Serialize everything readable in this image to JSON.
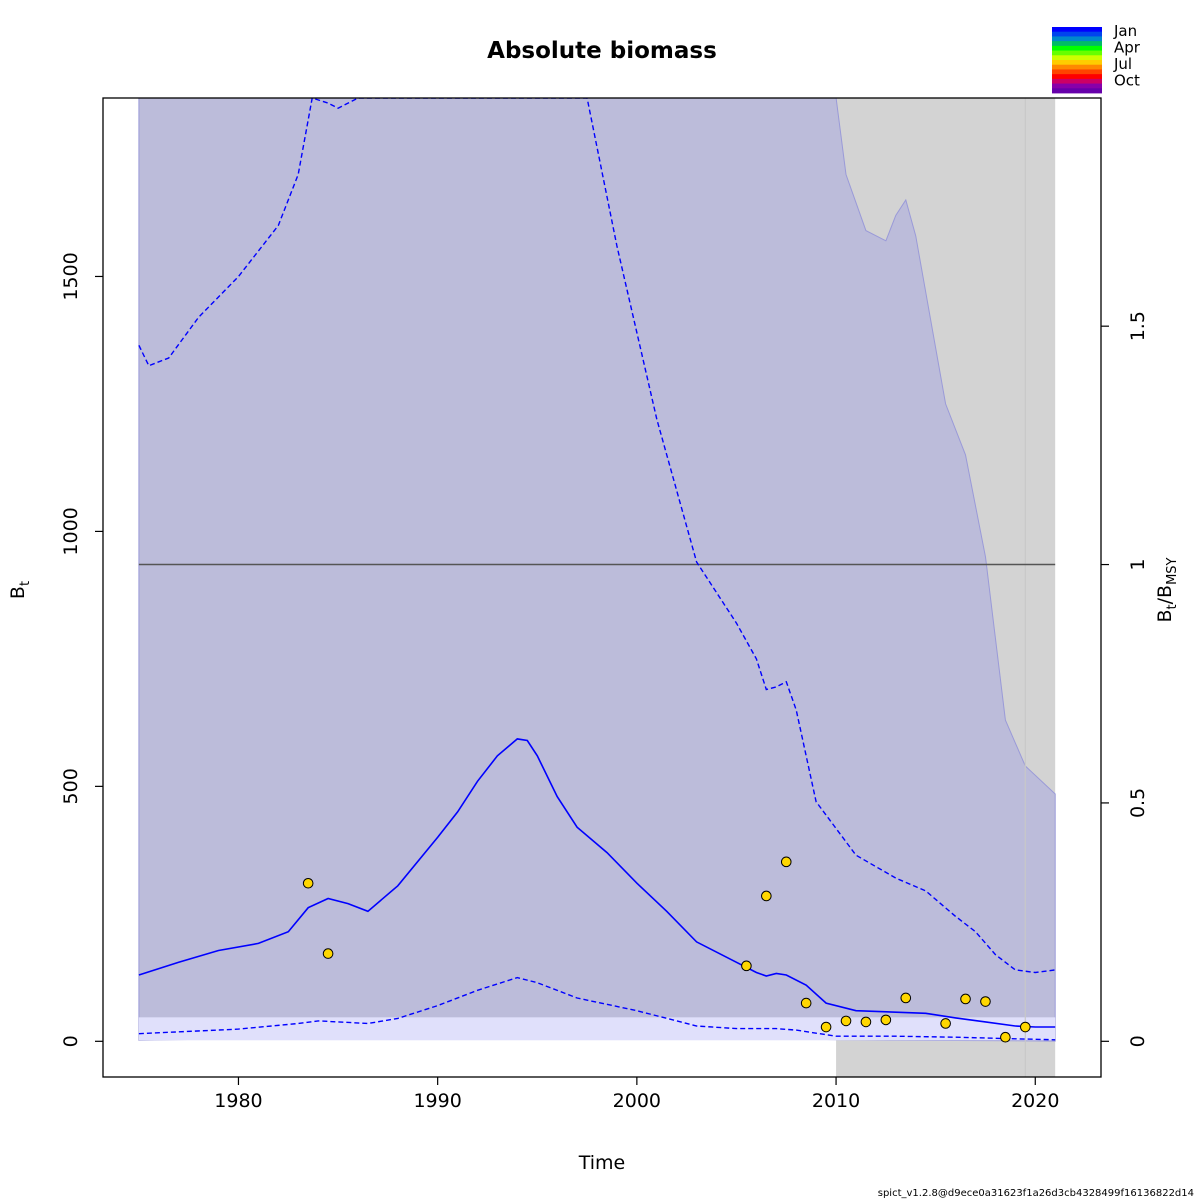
{
  "chart_data": {
    "type": "line",
    "title": "Absolute biomass",
    "xlabel": "Time",
    "ylabel_main": "B",
    "ylabel_sub": "t",
    "y2label": {
      "b": "B",
      "t": "t",
      "sep": "/B",
      "msy": "MSY"
    },
    "xlim": [
      1973.2,
      2023.3
    ],
    "ylim": [
      -70,
      1850
    ],
    "x_ticks": [
      1980,
      1990,
      2000,
      2010,
      2020
    ],
    "x_tick_labels": [
      "1980",
      "1990",
      "2000",
      "2010",
      "2020"
    ],
    "y_ticks": [
      0,
      500,
      1000,
      1500
    ],
    "y_tick_labels": [
      "0",
      "500",
      "1000",
      "1500"
    ],
    "y2_ticks": [
      0,
      0.5,
      1,
      1.5
    ],
    "y2_tick_labels": [
      "0",
      "0.5",
      "1",
      "1.5"
    ],
    "bmsy": 935,
    "bmsy_ci": [
      2,
      47
    ],
    "forecast_start": 2019.5,
    "colors": {
      "estimate": "#0000ff",
      "ci_fill": "#bcbcda",
      "bmsy_fill": "#e0e0fb",
      "forecast_bg": "#d3d3d3",
      "bmsy_line": "#555555",
      "obs_fill": "#ffd700"
    },
    "estimate": {
      "x": [
        1975,
        1977,
        1979,
        1981,
        1982.5,
        1983.5,
        1984.5,
        1985.5,
        1986.5,
        1988,
        1990,
        1991,
        1992,
        1993,
        1994,
        1994.5,
        1995,
        1996,
        1997,
        1998.5,
        2000,
        2001.5,
        2003,
        2005,
        2006,
        2006.5,
        2007,
        2007.5,
        2008.5,
        2009.5,
        2011,
        2013,
        2014.5,
        2016,
        2017.5,
        2019,
        2020,
        2021
      ],
      "y": [
        130,
        155,
        178,
        192,
        215,
        262,
        280,
        270,
        255,
        305,
        400,
        450,
        510,
        560,
        593,
        590,
        560,
        480,
        420,
        370,
        310,
        255,
        195,
        155,
        135,
        128,
        133,
        130,
        110,
        75,
        60,
        57,
        55,
        46,
        38,
        30,
        28,
        28
      ]
    },
    "lower_dashed": {
      "x": [
        1975,
        1980,
        1983,
        1984,
        1985,
        1986.5,
        1988,
        1990,
        1992,
        1994,
        1995,
        1997,
        2000,
        2003,
        2005,
        2007,
        2008,
        2010,
        2013,
        2016,
        2019,
        2021
      ],
      "y": [
        15,
        24,
        35,
        40,
        38,
        35,
        45,
        70,
        100,
        125,
        115,
        85,
        60,
        30,
        25,
        25,
        22,
        10,
        10,
        8,
        5,
        3
      ]
    },
    "upper_dashed": {
      "x": [
        1975,
        1975.5,
        1976.5,
        1978,
        1980,
        1982,
        1983,
        1983.7,
        1984.5,
        1985,
        1986,
        1997.5,
        1999,
        2001,
        2003,
        2005,
        2006,
        2006.5,
        2007,
        2007.5,
        2008,
        2009,
        2011,
        2013,
        2014.5,
        2016,
        2017,
        2018,
        2019,
        2020,
        2021
      ],
      "y": [
        1365,
        1325,
        1340,
        1420,
        1500,
        1600,
        1700,
        1850,
        1840,
        1830,
        1850,
        1850,
        1560,
        1220,
        940,
        820,
        750,
        690,
        695,
        705,
        650,
        470,
        365,
        320,
        295,
        245,
        215,
        170,
        140,
        135,
        140
      ]
    },
    "upper_ci": {
      "x": [
        1975,
        2010,
        2010.5,
        2011.5,
        2012.5,
        2013,
        2013.5,
        2014,
        2015.5,
        2016.5,
        2017.5,
        2018.5,
        2019.5,
        2021
      ],
      "y": [
        1850,
        1850,
        1700,
        1590,
        1570,
        1620,
        1650,
        1580,
        1250,
        1150,
        950,
        630,
        540,
        485
      ]
    },
    "lower_ci": {
      "x": [
        1975,
        1985,
        1990,
        1994,
        1997,
        2000,
        2003,
        2005,
        2008,
        2010,
        2013,
        2016,
        2019,
        2021
      ],
      "y": [
        2,
        8,
        14,
        26,
        20,
        12,
        7,
        6,
        5,
        3,
        2,
        1.5,
        1,
        0.5
      ]
    },
    "observations": {
      "x": [
        1983.5,
        1984.5,
        2005.5,
        2006.5,
        2007.5,
        2008.5,
        2009.5,
        2010.5,
        2011.5,
        2012.5,
        2013.5,
        2015.5,
        2016.5,
        2017.5,
        2018.5,
        2019.5
      ],
      "y": [
        310,
        172,
        148,
        285,
        352,
        75,
        28,
        40,
        38,
        42,
        85,
        35,
        83,
        78,
        8,
        28
      ]
    },
    "legend": {
      "labels": [
        "Jan",
        "Apr",
        "Jul",
        "Oct"
      ],
      "placement": "top-right",
      "colors": [
        "#0000ff",
        "#0044ee",
        "#0088cc",
        "#00bb66",
        "#00ff00",
        "#66ff00",
        "#ccff00",
        "#ffcc00",
        "#ff8800",
        "#ff4400",
        "#ff0000",
        "#cc0066",
        "#8800aa",
        "#6600aa"
      ]
    }
  },
  "footer": "spict_v1.2.8@d9ece0a31623f1a26d3cb4328499f16136822d14"
}
